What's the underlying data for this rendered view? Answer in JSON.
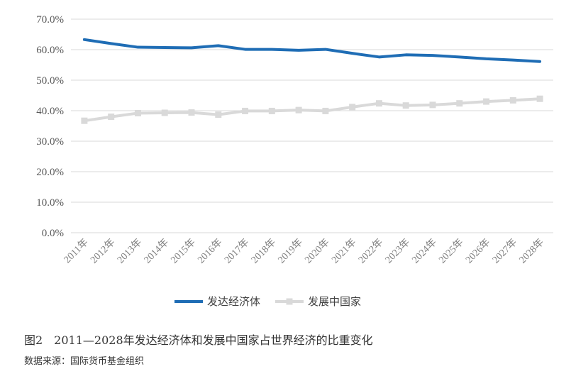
{
  "chart_data": {
    "type": "line",
    "x": [
      "2011年",
      "2012年",
      "2013年",
      "2014年",
      "2015年",
      "2016年",
      "2017年",
      "2018年",
      "2019年",
      "2020年",
      "2021年",
      "2022年",
      "2023年",
      "2024年",
      "2025年",
      "2026年",
      "2027年",
      "2028年"
    ],
    "series": [
      {
        "name": "发达经济体",
        "color": "#1f6db5",
        "marker": "none",
        "values": [
          63.3,
          62.0,
          60.8,
          60.7,
          60.6,
          61.3,
          60.1,
          60.1,
          59.8,
          60.1,
          58.8,
          57.6,
          58.3,
          58.1,
          57.6,
          57.0,
          56.6,
          56.1
        ]
      },
      {
        "name": "发展中国家",
        "color": "#d9d9d9",
        "marker": "square",
        "values": [
          36.7,
          38.0,
          39.2,
          39.3,
          39.4,
          38.7,
          39.9,
          39.9,
          40.2,
          39.9,
          41.2,
          42.4,
          41.7,
          41.9,
          42.4,
          43.0,
          43.4,
          43.9
        ]
      }
    ],
    "ylim": [
      0,
      70
    ],
    "yticks": [
      "0.0%",
      "10.0%",
      "20.0%",
      "30.0%",
      "40.0%",
      "50.0%",
      "60.0%",
      "70.0%"
    ],
    "grid": "horizontal",
    "legend": "bottom"
  },
  "caption": "图2　2011—2028年发达经济体和发展中国家占世界经济的比重变化",
  "source": "数据来源：国际货币基金组织"
}
